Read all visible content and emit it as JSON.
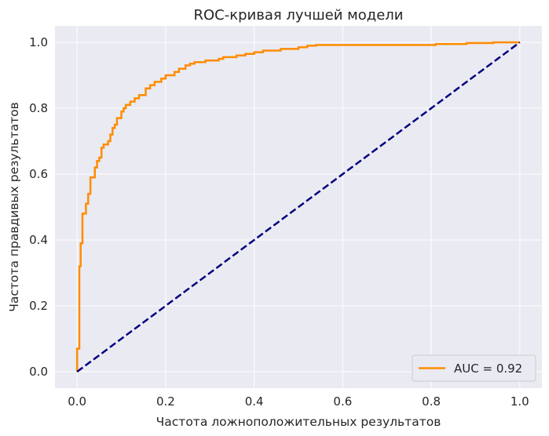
{
  "chart_data": {
    "type": "line",
    "title": "ROC-кривая лучшей модели",
    "xlabel": "Частота ложноположительных результатов",
    "ylabel": "Частота правдивых результатов",
    "xlim": [
      -0.05,
      1.05
    ],
    "ylim": [
      -0.05,
      1.05
    ],
    "xticks": [
      0.0,
      0.2,
      0.4,
      0.6,
      0.8,
      1.0
    ],
    "yticks": [
      0.0,
      0.2,
      0.4,
      0.6,
      0.8,
      1.0
    ],
    "xtick_labels": [
      "0.0",
      "0.2",
      "0.4",
      "0.6",
      "0.8",
      "1.0"
    ],
    "ytick_labels": [
      "0.0",
      "0.2",
      "0.4",
      "0.6",
      "0.8",
      "1.0"
    ],
    "grid": true,
    "legend_position": "lower-right",
    "series": [
      {
        "name": "AUC = 0.92",
        "color": "#ff8c00",
        "line_style": "solid",
        "step": true,
        "x": [
          0.0,
          0.0,
          0.005,
          0.005,
          0.008,
          0.008,
          0.012,
          0.012,
          0.02,
          0.02,
          0.025,
          0.025,
          0.03,
          0.03,
          0.04,
          0.04,
          0.045,
          0.045,
          0.05,
          0.05,
          0.055,
          0.055,
          0.06,
          0.06,
          0.07,
          0.07,
          0.075,
          0.075,
          0.08,
          0.08,
          0.085,
          0.085,
          0.09,
          0.09,
          0.1,
          0.1,
          0.105,
          0.105,
          0.11,
          0.11,
          0.12,
          0.12,
          0.13,
          0.13,
          0.14,
          0.14,
          0.155,
          0.155,
          0.165,
          0.165,
          0.175,
          0.175,
          0.19,
          0.19,
          0.2,
          0.2,
          0.22,
          0.22,
          0.23,
          0.23,
          0.245,
          0.245,
          0.255,
          0.255,
          0.265,
          0.265,
          0.29,
          0.29,
          0.32,
          0.32,
          0.33,
          0.33,
          0.36,
          0.36,
          0.38,
          0.38,
          0.4,
          0.4,
          0.42,
          0.42,
          0.46,
          0.46,
          0.5,
          0.5,
          0.52,
          0.52,
          0.54,
          0.54,
          0.81,
          0.81,
          0.88,
          0.88,
          0.94,
          0.94,
          1.0
        ],
        "values": [
          0.0,
          0.07,
          0.07,
          0.32,
          0.32,
          0.39,
          0.39,
          0.48,
          0.48,
          0.51,
          0.51,
          0.54,
          0.54,
          0.59,
          0.59,
          0.62,
          0.62,
          0.64,
          0.64,
          0.65,
          0.65,
          0.68,
          0.68,
          0.69,
          0.69,
          0.7,
          0.7,
          0.72,
          0.72,
          0.74,
          0.74,
          0.75,
          0.75,
          0.77,
          0.77,
          0.79,
          0.79,
          0.8,
          0.8,
          0.81,
          0.81,
          0.82,
          0.82,
          0.83,
          0.83,
          0.84,
          0.84,
          0.86,
          0.86,
          0.87,
          0.87,
          0.88,
          0.88,
          0.89,
          0.89,
          0.9,
          0.9,
          0.91,
          0.91,
          0.92,
          0.92,
          0.93,
          0.93,
          0.935,
          0.935,
          0.94,
          0.94,
          0.945,
          0.945,
          0.95,
          0.95,
          0.955,
          0.955,
          0.96,
          0.96,
          0.965,
          0.965,
          0.97,
          0.97,
          0.975,
          0.975,
          0.98,
          0.98,
          0.985,
          0.985,
          0.99,
          0.99,
          0.992,
          0.992,
          0.995,
          0.995,
          0.998,
          0.998,
          1.0,
          1.0
        ]
      },
      {
        "color": "#000080",
        "line_style": "dashed",
        "x": [
          0.0,
          1.0
        ],
        "values": [
          0.0,
          1.0
        ]
      }
    ]
  },
  "colors": {
    "plot_background": "#eaeaf2",
    "grid": "#ffffff",
    "text": "#262626"
  }
}
